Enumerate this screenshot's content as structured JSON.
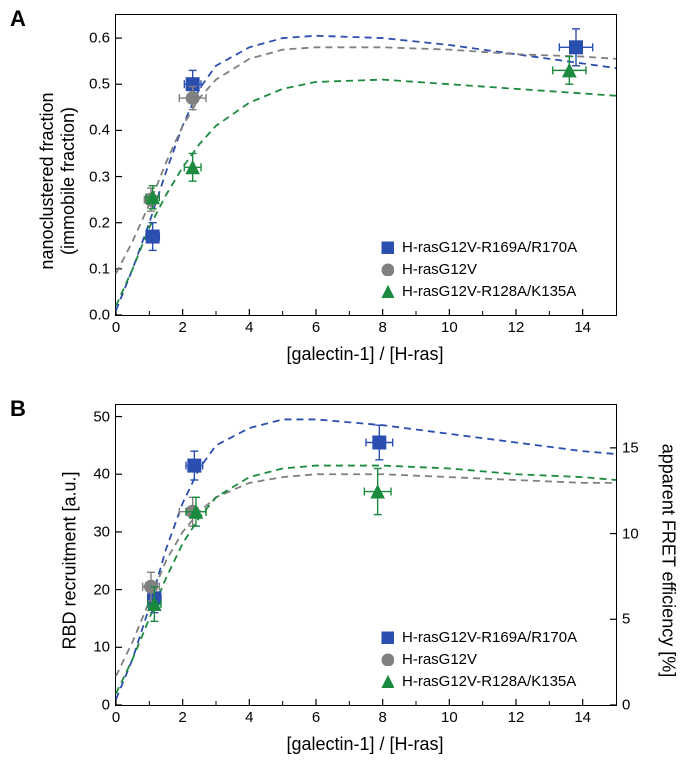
{
  "panelA": {
    "label": "A",
    "type": "scatter-with-fit",
    "xlabel": "[galectin-1] / [H-ras]",
    "ylabel_line1": "nanoclustered fraction",
    "ylabel_line2": "(immobile fraction)",
    "xlim": [
      0,
      15
    ],
    "ylim": [
      0.0,
      0.65
    ],
    "xtick_step": 2,
    "ytick_step": 0.1,
    "background_color": "#ffffff",
    "axis_color": "#000000",
    "tick_fontsize": 15,
    "label_fontsize": 18,
    "series": [
      {
        "name": "H-rasG12V-R169A/R170A",
        "marker": "square",
        "color": "#2b4fb0",
        "points": [
          {
            "x": 1.1,
            "y": 0.17,
            "ex": 0.2,
            "ey": 0.03
          },
          {
            "x": 2.3,
            "y": 0.5,
            "ex": 0.25,
            "ey": 0.03
          },
          {
            "x": 13.8,
            "y": 0.58,
            "ex": 0.5,
            "ey": 0.04
          }
        ],
        "fit": [
          {
            "x": 0,
            "y": 0.01
          },
          {
            "x": 0.5,
            "y": 0.1
          },
          {
            "x": 1,
            "y": 0.2
          },
          {
            "x": 1.5,
            "y": 0.31
          },
          {
            "x": 2,
            "y": 0.41
          },
          {
            "x": 2.5,
            "y": 0.49
          },
          {
            "x": 3,
            "y": 0.54
          },
          {
            "x": 4,
            "y": 0.58
          },
          {
            "x": 5,
            "y": 0.6
          },
          {
            "x": 6,
            "y": 0.605
          },
          {
            "x": 8,
            "y": 0.6
          },
          {
            "x": 10,
            "y": 0.585
          },
          {
            "x": 12,
            "y": 0.565
          },
          {
            "x": 14,
            "y": 0.545
          },
          {
            "x": 15,
            "y": 0.535
          }
        ]
      },
      {
        "name": "H-rasG12V",
        "marker": "circle",
        "color": "#808080",
        "points": [
          {
            "x": 1.05,
            "y": 0.25,
            "ex": 0.2,
            "ey": 0.025
          },
          {
            "x": 2.3,
            "y": 0.47,
            "ex": 0.4,
            "ey": 0.025
          }
        ],
        "fit": [
          {
            "x": 0,
            "y": 0.09
          },
          {
            "x": 0.5,
            "y": 0.16
          },
          {
            "x": 1,
            "y": 0.24
          },
          {
            "x": 1.5,
            "y": 0.33
          },
          {
            "x": 2,
            "y": 0.41
          },
          {
            "x": 2.5,
            "y": 0.47
          },
          {
            "x": 3,
            "y": 0.51
          },
          {
            "x": 4,
            "y": 0.555
          },
          {
            "x": 5,
            "y": 0.575
          },
          {
            "x": 6,
            "y": 0.58
          },
          {
            "x": 8,
            "y": 0.58
          },
          {
            "x": 10,
            "y": 0.575
          },
          {
            "x": 12,
            "y": 0.565
          },
          {
            "x": 14,
            "y": 0.56
          },
          {
            "x": 15,
            "y": 0.555
          }
        ]
      },
      {
        "name": "H-rasG12V-R128A/K135A",
        "marker": "triangle",
        "color": "#1b8a3e",
        "points": [
          {
            "x": 1.1,
            "y": 0.255,
            "ex": 0.2,
            "ey": 0.025
          },
          {
            "x": 2.3,
            "y": 0.32,
            "ex": 0.25,
            "ey": 0.03
          },
          {
            "x": 13.6,
            "y": 0.53,
            "ex": 0.5,
            "ey": 0.03
          }
        ],
        "fit": [
          {
            "x": 0,
            "y": 0.02
          },
          {
            "x": 0.5,
            "y": 0.1
          },
          {
            "x": 1,
            "y": 0.19
          },
          {
            "x": 1.5,
            "y": 0.26
          },
          {
            "x": 2,
            "y": 0.32
          },
          {
            "x": 2.5,
            "y": 0.37
          },
          {
            "x": 3,
            "y": 0.41
          },
          {
            "x": 4,
            "y": 0.46
          },
          {
            "x": 5,
            "y": 0.49
          },
          {
            "x": 6,
            "y": 0.505
          },
          {
            "x": 8,
            "y": 0.51
          },
          {
            "x": 10,
            "y": 0.5
          },
          {
            "x": 12,
            "y": 0.49
          },
          {
            "x": 14,
            "y": 0.48
          },
          {
            "x": 15,
            "y": 0.475
          }
        ]
      }
    ],
    "legend_items": [
      {
        "label": "H-rasG12V-R169A/R170A",
        "marker": "square",
        "color": "#2b4fb0"
      },
      {
        "label": "H-rasG12V",
        "marker": "circle",
        "color": "#808080"
      },
      {
        "label": "H-rasG12V-R128A/K135A",
        "marker": "triangle",
        "color": "#1b8a3e"
      }
    ]
  },
  "panelB": {
    "label": "B",
    "type": "scatter-with-fit",
    "xlabel": "[galectin-1] / [H-ras]",
    "ylabel": "RBD recruitment [a.u.]",
    "y2label": "apparent FRET efficiency [%]",
    "xlim": [
      0,
      15
    ],
    "ylim": [
      0,
      52
    ],
    "y2lim": [
      0,
      17.5
    ],
    "xtick_step": 2,
    "ytick_step": 10,
    "y2tick_step": 5,
    "background_color": "#ffffff",
    "axis_color": "#000000",
    "tick_fontsize": 15,
    "label_fontsize": 18,
    "series": [
      {
        "name": "H-rasG12V-R169A/R170A",
        "marker": "square",
        "color": "#2b4fb0",
        "points": [
          {
            "x": 1.15,
            "y": 18.5,
            "ex": 0.2,
            "ey": 2.5
          },
          {
            "x": 2.35,
            "y": 41.5,
            "ex": 0.25,
            "ey": 2.5
          },
          {
            "x": 7.9,
            "y": 45.5,
            "ex": 0.4,
            "ey": 3.0
          }
        ],
        "fit": [
          {
            "x": 0,
            "y": 1
          },
          {
            "x": 0.5,
            "y": 8
          },
          {
            "x": 1,
            "y": 17
          },
          {
            "x": 1.5,
            "y": 27
          },
          {
            "x": 2,
            "y": 35
          },
          {
            "x": 2.5,
            "y": 41
          },
          {
            "x": 3,
            "y": 45
          },
          {
            "x": 4,
            "y": 48
          },
          {
            "x": 5,
            "y": 49.5
          },
          {
            "x": 6,
            "y": 49.5
          },
          {
            "x": 8,
            "y": 48.5
          },
          {
            "x": 10,
            "y": 47
          },
          {
            "x": 12,
            "y": 45.5
          },
          {
            "x": 14,
            "y": 44
          },
          {
            "x": 15,
            "y": 43.5
          }
        ]
      },
      {
        "name": "H-rasG12V",
        "marker": "circle",
        "color": "#808080",
        "points": [
          {
            "x": 1.05,
            "y": 20.5,
            "ex": 0.25,
            "ey": 2.5
          },
          {
            "x": 2.3,
            "y": 33.5,
            "ex": 0.4,
            "ey": 2.5
          }
        ],
        "fit": [
          {
            "x": 0,
            "y": 5
          },
          {
            "x": 0.5,
            "y": 11
          },
          {
            "x": 1,
            "y": 18
          },
          {
            "x": 1.5,
            "y": 25
          },
          {
            "x": 2,
            "y": 30
          },
          {
            "x": 2.5,
            "y": 33.5
          },
          {
            "x": 3,
            "y": 36
          },
          {
            "x": 4,
            "y": 38.5
          },
          {
            "x": 5,
            "y": 39.5
          },
          {
            "x": 6,
            "y": 40
          },
          {
            "x": 8,
            "y": 40
          },
          {
            "x": 10,
            "y": 39.5
          },
          {
            "x": 12,
            "y": 39
          },
          {
            "x": 14,
            "y": 38.5
          },
          {
            "x": 15,
            "y": 38.5
          }
        ]
      },
      {
        "name": "H-rasG12V-R128A/K135A",
        "marker": "triangle",
        "color": "#1b8a3e",
        "points": [
          {
            "x": 1.15,
            "y": 17.5,
            "ex": 0.2,
            "ey": 3.0
          },
          {
            "x": 2.4,
            "y": 33.5,
            "ex": 0.3,
            "ey": 2.5
          },
          {
            "x": 7.85,
            "y": 37.0,
            "ex": 0.4,
            "ey": 4.0
          }
        ],
        "fit": [
          {
            "x": 0,
            "y": 2
          },
          {
            "x": 0.5,
            "y": 8
          },
          {
            "x": 1,
            "y": 15
          },
          {
            "x": 1.5,
            "y": 22
          },
          {
            "x": 2,
            "y": 28
          },
          {
            "x": 2.5,
            "y": 32.5
          },
          {
            "x": 3,
            "y": 36
          },
          {
            "x": 4,
            "y": 39.5
          },
          {
            "x": 5,
            "y": 41
          },
          {
            "x": 6,
            "y": 41.5
          },
          {
            "x": 8,
            "y": 41.5
          },
          {
            "x": 10,
            "y": 41
          },
          {
            "x": 12,
            "y": 40
          },
          {
            "x": 14,
            "y": 39.5
          },
          {
            "x": 15,
            "y": 39
          }
        ]
      }
    ],
    "legend_items": [
      {
        "label": "H-rasG12V-R169A/R170A",
        "marker": "square",
        "color": "#2b4fb0"
      },
      {
        "label": "H-rasG12V",
        "marker": "circle",
        "color": "#808080"
      },
      {
        "label": "H-rasG12V-R128A/K135A",
        "marker": "triangle",
        "color": "#1b8a3e"
      }
    ]
  }
}
